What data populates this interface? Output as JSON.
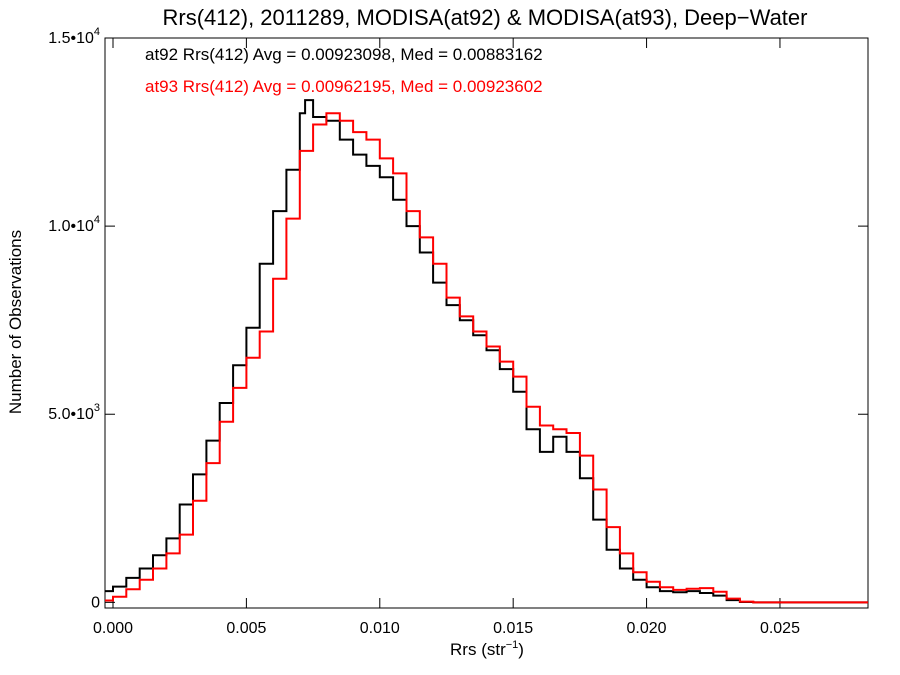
{
  "chart_data": {
    "type": "line",
    "title": "Rrs(412), 2011289, MODISA(at92) & MODISA(at93), Deep−Water",
    "xlabel_base": "Rrs (str",
    "xlabel_sup": "−1",
    "xlabel_close": ")",
    "ylabel": "Number of Observations",
    "xlim": [
      -0.0003,
      0.0283
    ],
    "ylim": [
      -150,
      15000
    ],
    "x_ticks": [
      {
        "value": 0.0,
        "label": "0.000"
      },
      {
        "value": 0.005,
        "label": "0.005"
      },
      {
        "value": 0.01,
        "label": "0.010"
      },
      {
        "value": 0.015,
        "label": "0.015"
      },
      {
        "value": 0.02,
        "label": "0.020"
      },
      {
        "value": 0.025,
        "label": "0.025"
      }
    ],
    "y_ticks": [
      {
        "value": 0,
        "mant": "0",
        "exp": ""
      },
      {
        "value": 5000,
        "mant": "5.0•10",
        "exp": "3"
      },
      {
        "value": 10000,
        "mant": "1.0•10",
        "exp": "4"
      },
      {
        "value": 15000,
        "mant": "1.5•10",
        "exp": "4"
      }
    ],
    "annotations": [
      {
        "text": "at92 Rrs(412) Avg = 0.00923098, Med = 0.00883162",
        "color": "#000000"
      },
      {
        "text": "at93 Rrs(412) Avg = 0.00962195, Med = 0.00923602",
        "color": "#ff0000"
      }
    ],
    "series": [
      {
        "color": "#000000",
        "points": [
          [
            -0.0003,
            300
          ],
          [
            0.0,
            420
          ],
          [
            0.0005,
            650
          ],
          [
            0.001,
            900
          ],
          [
            0.0015,
            1250
          ],
          [
            0.002,
            1700
          ],
          [
            0.0025,
            2600
          ],
          [
            0.003,
            3400
          ],
          [
            0.0035,
            4300
          ],
          [
            0.004,
            5300
          ],
          [
            0.0045,
            6300
          ],
          [
            0.005,
            7300
          ],
          [
            0.0055,
            9000
          ],
          [
            0.006,
            10400
          ],
          [
            0.0065,
            11500
          ],
          [
            0.007,
            13000
          ],
          [
            0.0072,
            13350
          ],
          [
            0.0075,
            12900
          ],
          [
            0.008,
            12800
          ],
          [
            0.0085,
            12300
          ],
          [
            0.009,
            11900
          ],
          [
            0.0095,
            11600
          ],
          [
            0.01,
            11300
          ],
          [
            0.0105,
            10700
          ],
          [
            0.011,
            10000
          ],
          [
            0.0115,
            9300
          ],
          [
            0.012,
            8500
          ],
          [
            0.0125,
            7900
          ],
          [
            0.013,
            7500
          ],
          [
            0.0135,
            7100
          ],
          [
            0.014,
            6700
          ],
          [
            0.0145,
            6200
          ],
          [
            0.015,
            5600
          ],
          [
            0.0155,
            4600
          ],
          [
            0.016,
            4000
          ],
          [
            0.0165,
            4400
          ],
          [
            0.017,
            4000
          ],
          [
            0.0175,
            3300
          ],
          [
            0.018,
            2200
          ],
          [
            0.0185,
            1400
          ],
          [
            0.019,
            900
          ],
          [
            0.0195,
            600
          ],
          [
            0.02,
            400
          ],
          [
            0.0205,
            300
          ],
          [
            0.021,
            270
          ],
          [
            0.0215,
            300
          ],
          [
            0.022,
            250
          ],
          [
            0.0225,
            180
          ],
          [
            0.023,
            60
          ],
          [
            0.0235,
            10
          ],
          [
            0.024,
            0
          ],
          [
            0.0283,
            0
          ]
        ]
      },
      {
        "color": "#ff0000",
        "points": [
          [
            -0.0003,
            50
          ],
          [
            0.0,
            150
          ],
          [
            0.0005,
            350
          ],
          [
            0.001,
            600
          ],
          [
            0.0015,
            900
          ],
          [
            0.002,
            1300
          ],
          [
            0.0025,
            1800
          ],
          [
            0.003,
            2700
          ],
          [
            0.0035,
            3700
          ],
          [
            0.004,
            4800
          ],
          [
            0.0045,
            5700
          ],
          [
            0.005,
            6500
          ],
          [
            0.0055,
            7200
          ],
          [
            0.006,
            8600
          ],
          [
            0.0065,
            10200
          ],
          [
            0.007,
            12000
          ],
          [
            0.0075,
            12700
          ],
          [
            0.008,
            13000
          ],
          [
            0.0085,
            12800
          ],
          [
            0.009,
            12500
          ],
          [
            0.0095,
            12300
          ],
          [
            0.01,
            11800
          ],
          [
            0.0105,
            11400
          ],
          [
            0.011,
            10400
          ],
          [
            0.0115,
            9700
          ],
          [
            0.012,
            9000
          ],
          [
            0.0125,
            8100
          ],
          [
            0.013,
            7600
          ],
          [
            0.0135,
            7200
          ],
          [
            0.014,
            6800
          ],
          [
            0.0145,
            6400
          ],
          [
            0.015,
            6000
          ],
          [
            0.0155,
            5200
          ],
          [
            0.016,
            4700
          ],
          [
            0.0165,
            4600
          ],
          [
            0.017,
            4500
          ],
          [
            0.0175,
            3900
          ],
          [
            0.018,
            3000
          ],
          [
            0.0185,
            2000
          ],
          [
            0.019,
            1300
          ],
          [
            0.0195,
            800
          ],
          [
            0.02,
            550
          ],
          [
            0.0205,
            400
          ],
          [
            0.021,
            330
          ],
          [
            0.0215,
            360
          ],
          [
            0.022,
            380
          ],
          [
            0.0225,
            280
          ],
          [
            0.023,
            100
          ],
          [
            0.0235,
            20
          ],
          [
            0.024,
            0
          ],
          [
            0.0283,
            0
          ]
        ]
      }
    ]
  }
}
